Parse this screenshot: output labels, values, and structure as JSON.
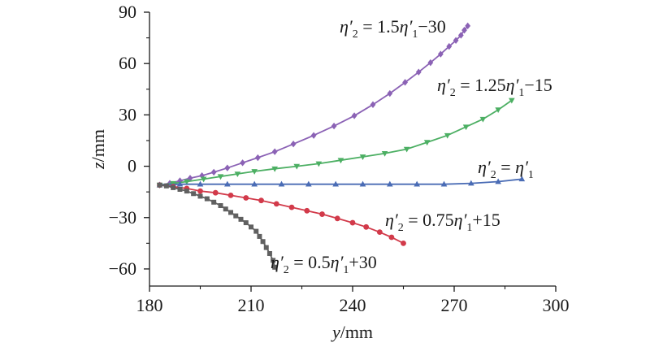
{
  "chart_data": {
    "type": "line",
    "xlabel": {
      "var": "y",
      "unit": "/mm"
    },
    "ylabel": {
      "var": "z",
      "unit": "/mm"
    },
    "xlim": [
      180,
      300
    ],
    "ylim": [
      -70,
      90
    ],
    "xticks": [
      "180",
      "210",
      "240",
      "270",
      "300"
    ],
    "yticks": [
      "90",
      "60",
      "30",
      "0",
      "−30",
      "−60"
    ],
    "xtick_values": [
      180,
      210,
      240,
      270,
      300
    ],
    "ytick_values": [
      90,
      60,
      30,
      0,
      -30,
      -60
    ],
    "grid": false,
    "series": [
      {
        "color": "#8b62b5",
        "marker": "diamond",
        "annotation": {
          "lhs": "η′",
          "lhs_sub": "2",
          "mid": " = 1.5η′",
          "mid_sub": "1",
          "rhs": "−30"
        },
        "x": [
          183,
          186,
          189,
          192,
          195.5,
          199,
          203,
          207.5,
          212,
          217,
          222.5,
          228.5,
          234.5,
          240.5,
          246,
          251,
          255.5,
          259.5,
          263,
          266,
          268.5,
          270.5,
          272,
          273,
          274
        ],
        "y": [
          -11,
          -10,
          -8.5,
          -7,
          -5.5,
          -3.5,
          -1,
          2,
          5,
          8.5,
          13,
          18,
          23.5,
          29.5,
          36,
          42.5,
          49,
          55,
          60.5,
          65.5,
          70,
          73.5,
          76.5,
          79.5,
          82
        ]
      },
      {
        "color": "#4caf63",
        "marker": "triangle-down",
        "annotation": {
          "lhs": "η′",
          "lhs_sub": "2",
          "mid": " = 1.25η′",
          "mid_sub": "1",
          "rhs": "−15"
        },
        "x": [
          183,
          187,
          191,
          196,
          201,
          206,
          211,
          217,
          223.5,
          230,
          236.5,
          243,
          249.5,
          256,
          262,
          268,
          273.5,
          278.5,
          283,
          287
        ],
        "y": [
          -11,
          -10,
          -9,
          -7.5,
          -6,
          -4.5,
          -3,
          -1.5,
          0,
          1.5,
          3.5,
          5.5,
          7.5,
          10,
          14,
          18,
          23,
          27.5,
          33,
          38.5
        ]
      },
      {
        "color": "#4a6cb5",
        "marker": "triangle-up",
        "annotation": {
          "lhs": "η′",
          "lhs_sub": "2",
          "mid": " = η′",
          "mid_sub": "1",
          "rhs": ""
        },
        "x": [
          183,
          189,
          195,
          203,
          211,
          219,
          227,
          235,
          243,
          251,
          259,
          267,
          275,
          283,
          290
        ],
        "y": [
          -11,
          -10.5,
          -10.5,
          -10.5,
          -10.5,
          -10.5,
          -10.5,
          -10.5,
          -10.5,
          -10.5,
          -10.5,
          -10.5,
          -10,
          -9,
          -7.5
        ]
      },
      {
        "color": "#d23a4a",
        "marker": "circle",
        "annotation": {
          "lhs": "η′",
          "lhs_sub": "2",
          "mid": " = 0.75η′",
          "mid_sub": "1",
          "rhs": "+15"
        },
        "x": [
          183,
          187,
          191,
          195,
          199.5,
          204,
          208.5,
          213,
          217.5,
          222,
          226.5,
          231,
          235.5,
          240,
          244,
          248,
          251.5,
          255
        ],
        "y": [
          -11,
          -12,
          -13,
          -14.5,
          -15.5,
          -17,
          -18.5,
          -20,
          -22,
          -24,
          -26,
          -28,
          -30.5,
          -33,
          -35.5,
          -38.5,
          -41.5,
          -45
        ]
      },
      {
        "color": "#606060",
        "marker": "square",
        "annotation": {
          "lhs": "η′",
          "lhs_sub": "2",
          "mid": " = 0.5η′",
          "mid_sub": "1",
          "rhs": "+30"
        },
        "x": [
          183,
          185,
          187,
          189,
          191,
          193,
          195,
          197,
          199,
          201,
          202.5,
          204,
          205.5,
          207,
          208.5,
          210,
          211.5,
          212.5,
          213.5,
          214.5,
          215.5,
          216.5,
          217
        ],
        "y": [
          -11,
          -11.5,
          -12.5,
          -13.5,
          -14.5,
          -16,
          -17.5,
          -19,
          -21,
          -23,
          -25,
          -27,
          -29,
          -31,
          -33,
          -35.5,
          -38,
          -41,
          -44,
          -47.5,
          -51,
          -55,
          -59
        ]
      }
    ]
  }
}
